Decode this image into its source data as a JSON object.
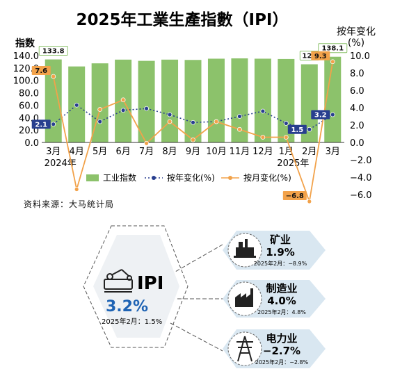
{
  "chart_data": {
    "type": "bar+line",
    "title": "2025年工業生產指數（IPI）",
    "left_axis_label": "指数",
    "right_axis_label_line1": "按年变化",
    "right_axis_label_line2": "(%)",
    "categories": [
      "3月",
      "4月",
      "5月",
      "6月",
      "7月",
      "8月",
      "9月",
      "10月",
      "11月",
      "12月",
      "1月",
      "2月",
      "3月"
    ],
    "year_labels": [
      {
        "index": 0,
        "text": "2024年"
      },
      {
        "index": 10,
        "text": "2025年"
      }
    ],
    "left_ylim": [
      0,
      140
    ],
    "left_ticks": [
      "0.0",
      "20.0",
      "40.0",
      "60.0",
      "80.0",
      "100.0",
      "120.0",
      "140.0"
    ],
    "right_ylim": [
      -6,
      10
    ],
    "right_ticks": [
      "−6.0",
      "−4.0",
      "−2.0",
      "0.0",
      "2.0",
      "4.0",
      "6.0",
      "8.0",
      "10.0"
    ],
    "series": [
      {
        "name": "工业指数",
        "kind": "bar",
        "axis": "left",
        "color": "#8cc26b",
        "values": [
          133.8,
          122.5,
          127.5,
          133.5,
          131.5,
          133.5,
          133,
          135,
          135.5,
          135,
          134.5,
          126,
          138.1
        ]
      },
      {
        "name": "按年变化(%)",
        "kind": "line",
        "style": "dotted",
        "axis": "right",
        "color": "#283f8f",
        "values": [
          2.1,
          4.3,
          2.4,
          3.7,
          3.9,
          3.2,
          2.3,
          2.4,
          3.0,
          3.6,
          2.2,
          1.5,
          3.2
        ]
      },
      {
        "name": "按月变化(%)",
        "kind": "line",
        "style": "solid",
        "axis": "right",
        "color": "#f2a24a",
        "values": [
          7.6,
          -5.4,
          3.8,
          4.9,
          -0.1,
          2.4,
          0.3,
          2.4,
          1.5,
          0.6,
          0.6,
          -6.8,
          9.3
        ]
      }
    ],
    "data_labels": [
      {
        "series": 0,
        "index": 0,
        "text": "133.8"
      },
      {
        "series": 0,
        "index": 11,
        "text": "126"
      },
      {
        "series": 0,
        "index": 12,
        "text": "138.1"
      },
      {
        "series": 1,
        "index": 0,
        "text": "2.1"
      },
      {
        "series": 1,
        "index": 11,
        "text": "1.5"
      },
      {
        "series": 1,
        "index": 12,
        "text": "3.2"
      },
      {
        "series": 2,
        "index": 0,
        "text": "7.6"
      },
      {
        "series": 2,
        "index": 11,
        "text": "−6.8"
      },
      {
        "series": 2,
        "index": 12,
        "text": "9.3"
      }
    ],
    "legend": [
      "工业指数",
      "按年变化(%)",
      "按月变化(%)"
    ]
  },
  "source": "资料来源：大马统计局",
  "ipi_panel": {
    "label": "IPI",
    "value": "3.2%",
    "prev": "2025年2月：1.5%"
  },
  "sectors": [
    {
      "name": "矿业",
      "value": "1.9%",
      "prev": "2025年2月：−8.9%",
      "icon": "mining-icon"
    },
    {
      "name": "制造业",
      "value": "4.0%",
      "prev": "2025年2月：4.8%",
      "icon": "factory-icon"
    },
    {
      "name": "电力业",
      "value": "−2.7%",
      "prev": "2025年2月：−2.8%",
      "icon": "power-tower-icon"
    }
  ],
  "colors": {
    "bar": "#8cc26b",
    "yoy": "#283f8f",
    "mom": "#f2a24a",
    "accent_blue": "#1e63b4",
    "panel_fill": "#cfe1ee"
  }
}
